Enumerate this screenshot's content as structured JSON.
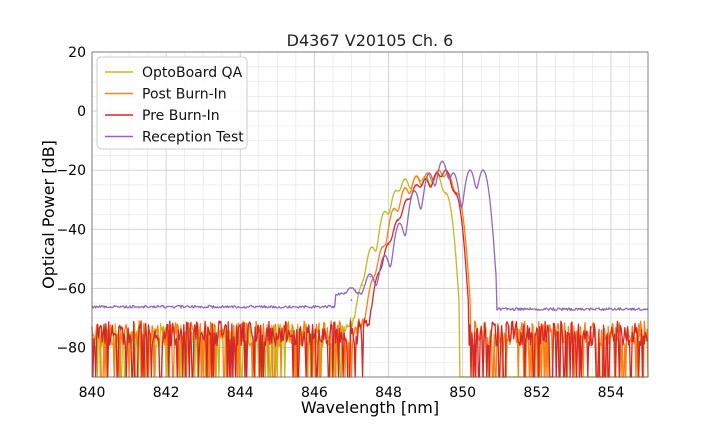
{
  "chart_data": {
    "type": "line",
    "title": "D4367 V20105 Ch. 6",
    "xlabel": "Wavelength [nm]",
    "ylabel": "Optical Power [dB]",
    "xlim": [
      840,
      855
    ],
    "ylim": [
      -90,
      20
    ],
    "x_ticks": [
      "840",
      "842",
      "844",
      "846",
      "848",
      "850",
      "852",
      "854"
    ],
    "y_ticks": [
      "20",
      "0",
      "−20",
      "−40",
      "−60",
      "−80"
    ],
    "grid": true,
    "legend_position": "top-left",
    "series": [
      {
        "name": "OptoBoard QA",
        "color": "#bcbd22",
        "noise_floor": {
          "x_range": [
            840.0,
            849.6
          ],
          "db_range": [
            -90,
            -72
          ],
          "note": "noisy floor, many drops to -90"
        },
        "peaks": [
          {
            "x": 847.3,
            "y": -59
          },
          {
            "x": 847.55,
            "y": -46
          },
          {
            "x": 847.9,
            "y": -34
          },
          {
            "x": 848.2,
            "y": -27
          },
          {
            "x": 848.45,
            "y": -23
          },
          {
            "x": 848.75,
            "y": -22
          },
          {
            "x": 849.0,
            "y": -22
          },
          {
            "x": 849.3,
            "y": -21
          },
          {
            "x": 849.55,
            "y": -28
          }
        ]
      },
      {
        "name": "Post Burn-In",
        "color": "#ff7f0e",
        "noise_floor": {
          "x_range": [
            840.0,
            855.0
          ],
          "db_range": [
            -90,
            -71
          ],
          "note": "noisy floor"
        },
        "peaks": [
          {
            "x": 847.6,
            "y": -57
          },
          {
            "x": 847.85,
            "y": -46
          },
          {
            "x": 848.15,
            "y": -33
          },
          {
            "x": 848.45,
            "y": -26
          },
          {
            "x": 848.75,
            "y": -22
          },
          {
            "x": 849.05,
            "y": -21
          },
          {
            "x": 849.35,
            "y": -20
          },
          {
            "x": 849.6,
            "y": -21
          },
          {
            "x": 849.85,
            "y": -28
          }
        ]
      },
      {
        "name": "Pre Burn-In",
        "color": "#d62728",
        "noise_floor": {
          "x_range": [
            840.0,
            855.0
          ],
          "db_range": [
            -90,
            -71
          ],
          "note": "noisy floor, deep dip near 846.7"
        },
        "peaks": [
          {
            "x": 847.75,
            "y": -55
          },
          {
            "x": 848.0,
            "y": -45
          },
          {
            "x": 848.25,
            "y": -37
          },
          {
            "x": 848.5,
            "y": -30
          },
          {
            "x": 848.75,
            "y": -25
          },
          {
            "x": 849.0,
            "y": -23
          },
          {
            "x": 849.3,
            "y": -21
          },
          {
            "x": 849.55,
            "y": -20
          },
          {
            "x": 849.8,
            "y": -28
          }
        ]
      },
      {
        "name": "Reception Test",
        "color": "#9467bd",
        "noise_floor": {
          "x_range": [
            840.0,
            855.0
          ],
          "db_range": [
            -68,
            -66
          ],
          "note": "smooth floor, about -66 dB left, -67 dB right"
        },
        "peaks": [
          {
            "x": 847.0,
            "y": -64
          },
          {
            "x": 847.5,
            "y": -56
          },
          {
            "x": 847.9,
            "y": -49
          },
          {
            "x": 848.3,
            "y": -38
          },
          {
            "x": 848.7,
            "y": -27
          },
          {
            "x": 849.1,
            "y": -21
          },
          {
            "x": 849.45,
            "y": -17
          },
          {
            "x": 849.75,
            "y": -21
          },
          {
            "x": 850.2,
            "y": -20
          },
          {
            "x": 850.55,
            "y": -20
          }
        ]
      }
    ]
  }
}
